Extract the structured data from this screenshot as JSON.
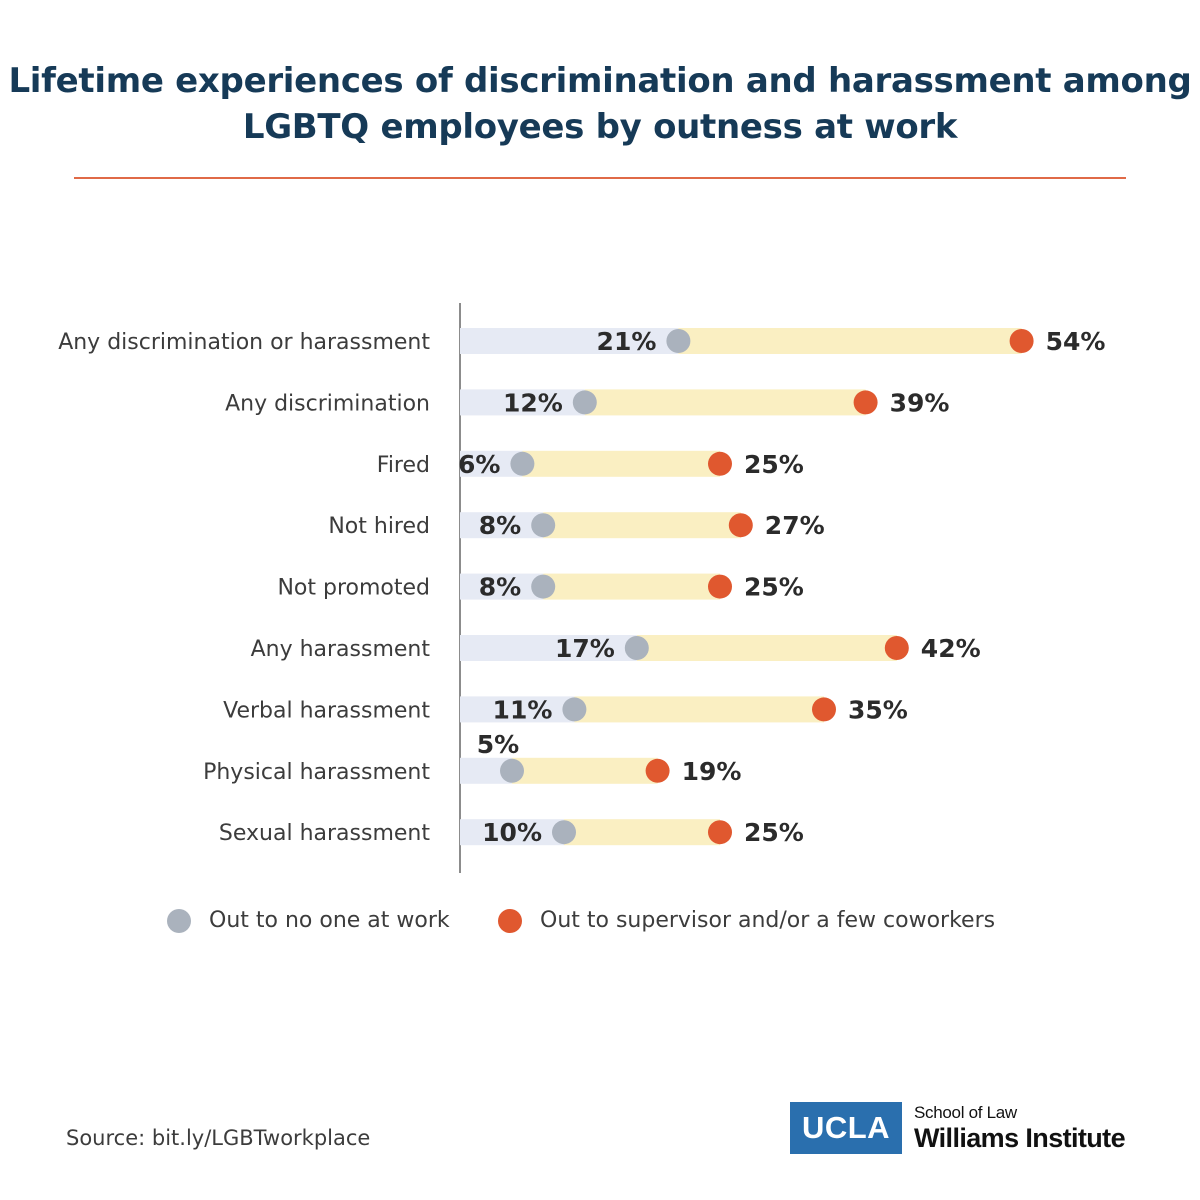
{
  "title": {
    "line1": "Lifetime experiences of discrimination and harassment among",
    "line2": "LGBTQ employees by outness at work"
  },
  "colors": {
    "title": "#163a57",
    "accent_rule": "#e06a47",
    "series_no_one": "#aab2bd",
    "series_supervisor": "#e0582f",
    "bar_light": "#e6eaf4",
    "bar_gap": "#faefc2",
    "axis": "#666666",
    "label": "#3c3c3c"
  },
  "chart_data": {
    "type": "dumbbell",
    "title": "Lifetime experiences of discrimination and harassment among LGBTQ employees by outness at work",
    "xlabel": "",
    "ylabel": "",
    "unit": "%",
    "xlim": [
      0,
      100
    ],
    "categories": [
      "Any discrimination or harassment",
      "Any discrimination",
      "Fired",
      "Not hired",
      "Not promoted",
      "Any harassment",
      "Verbal harassment",
      "Physical harassment",
      "Sexual harassment"
    ],
    "series": [
      {
        "name": "Out to no one at work",
        "values": [
          21,
          12,
          6,
          8,
          8,
          17,
          11,
          5,
          10
        ]
      },
      {
        "name": "Out to supervisor and/or a few coworkers",
        "values": [
          54,
          39,
          25,
          27,
          25,
          42,
          35,
          19,
          25
        ]
      }
    ],
    "legend_position": "bottom"
  },
  "legend": {
    "item1": "Out to no one at work",
    "item2": "Out to supervisor and/or a few coworkers"
  },
  "source": "Source: bit.ly/LGBTworkplace",
  "logo": {
    "mark": "UCLA",
    "line1": "School of Law",
    "line2": "Williams Institute"
  }
}
